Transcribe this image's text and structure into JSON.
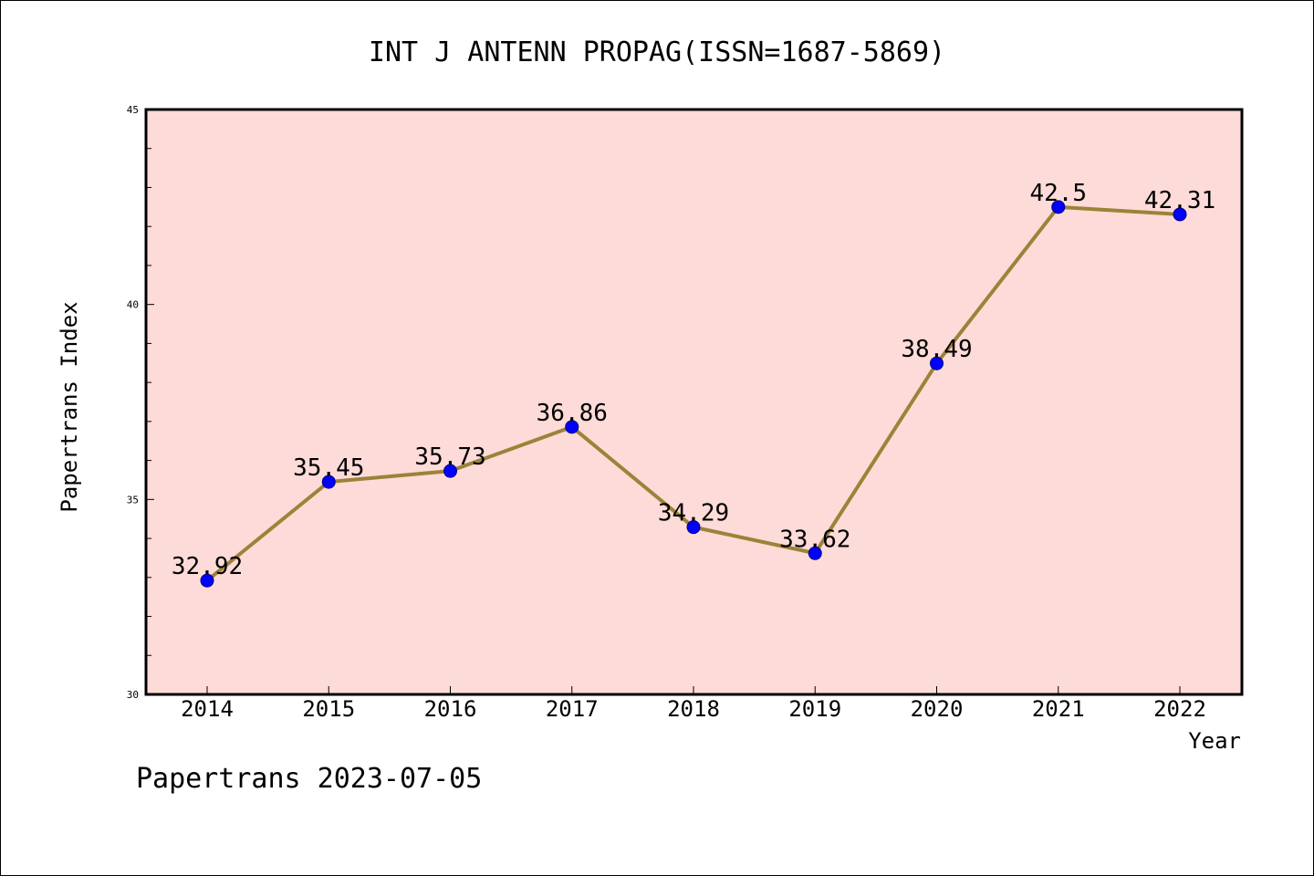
{
  "title": "INT J ANTENN PROPAG(ISSN=1687-5869)",
  "footer": "Papertrans 2023-07-05",
  "colors": {
    "plot_background": "#fddbd8",
    "line": "#9b8338",
    "marker_fill": "#0000ff",
    "marker_stroke": "#000080"
  },
  "chart_data": {
    "type": "line",
    "title": "INT J ANTENN PROPAG(ISSN=1687-5869)",
    "xlabel": "Year",
    "ylabel": "Papertrans Index",
    "categories": [
      "2014",
      "2015",
      "2016",
      "2017",
      "2018",
      "2019",
      "2020",
      "2021",
      "2022"
    ],
    "series": [
      {
        "values": [
          32.92,
          35.45,
          35.73,
          36.86,
          34.29,
          33.62,
          38.49,
          42.5,
          42.31
        ],
        "labels": [
          "32.92",
          "35.45",
          "35.73",
          "36.86",
          "34.29",
          "33.62",
          "38.49",
          "42.5",
          "42.31"
        ]
      }
    ],
    "ylim": [
      30,
      45
    ],
    "yticks": [
      "30",
      "35",
      "40",
      "45"
    ],
    "grid": false
  }
}
